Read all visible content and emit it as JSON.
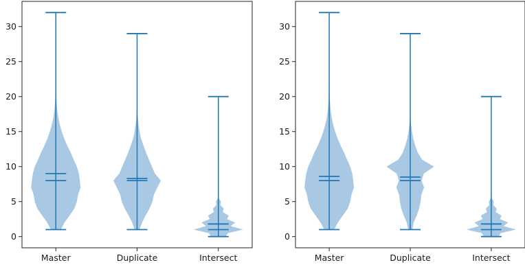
{
  "colors": {
    "violin_fill": "#a9c8e3",
    "line": "#1f77b4",
    "axis": "#222222",
    "text": "#1a1a1a"
  },
  "chart_data": [
    {
      "type": "violin",
      "title": "",
      "xlabel": "",
      "ylabel": "",
      "categories": [
        "Master",
        "Duplicate",
        "Intersect"
      ],
      "ylim": [
        -1.6,
        33.6
      ],
      "yticks": [
        0,
        5,
        10,
        15,
        20,
        25,
        30
      ],
      "grid": false,
      "series": [
        {
          "category": "Master",
          "min": 1,
          "max": 32,
          "mean": 9.0,
          "median": 8.0,
          "density": [
            [
              1,
              0.2
            ],
            [
              2,
              0.35
            ],
            [
              3,
              0.55
            ],
            [
              4,
              0.75
            ],
            [
              5,
              0.85
            ],
            [
              6,
              0.9
            ],
            [
              7,
              1.0
            ],
            [
              8,
              0.97
            ],
            [
              9,
              0.93
            ],
            [
              10,
              0.85
            ],
            [
              11,
              0.72
            ],
            [
              12,
              0.6
            ],
            [
              13,
              0.46
            ],
            [
              14,
              0.34
            ],
            [
              15,
              0.24
            ],
            [
              16,
              0.16
            ],
            [
              17,
              0.1
            ],
            [
              18,
              0.06
            ],
            [
              19,
              0.035
            ],
            [
              20,
              0.02
            ],
            [
              22,
              0.01
            ],
            [
              26,
              0.005
            ],
            [
              32,
              0.0
            ]
          ]
        },
        {
          "category": "Duplicate",
          "min": 1,
          "max": 29,
          "mean": 8.3,
          "median": 8.0,
          "density": [
            [
              1,
              0.1
            ],
            [
              2,
              0.2
            ],
            [
              3,
              0.34
            ],
            [
              4,
              0.5
            ],
            [
              5,
              0.62
            ],
            [
              6,
              0.68
            ],
            [
              7,
              0.82
            ],
            [
              8,
              0.96
            ],
            [
              9,
              0.72
            ],
            [
              10,
              0.6
            ],
            [
              11,
              0.48
            ],
            [
              12,
              0.36
            ],
            [
              13,
              0.26
            ],
            [
              14,
              0.16
            ],
            [
              15,
              0.1
            ],
            [
              16,
              0.06
            ],
            [
              17,
              0.03
            ],
            [
              18,
              0.015
            ],
            [
              20,
              0.005
            ],
            [
              29,
              0.0
            ]
          ]
        },
        {
          "category": "Intersect",
          "min": 0,
          "max": 20,
          "mean": 1.8,
          "median": 1.0,
          "density": [
            [
              0,
              0.3
            ],
            [
              0.5,
              0.38
            ],
            [
              1,
              1.0
            ],
            [
              1.5,
              0.5
            ],
            [
              2,
              0.68
            ],
            [
              2.5,
              0.35
            ],
            [
              3,
              0.42
            ],
            [
              3.5,
              0.18
            ],
            [
              4,
              0.22
            ],
            [
              4.5,
              0.08
            ],
            [
              5,
              0.1
            ],
            [
              5.5,
              0.02
            ],
            [
              6,
              0.01
            ],
            [
              8,
              0.005
            ],
            [
              20,
              0.0
            ]
          ]
        }
      ]
    },
    {
      "type": "violin",
      "title": "",
      "xlabel": "",
      "ylabel": "",
      "categories": [
        "Master",
        "Duplicate",
        "Intersect"
      ],
      "ylim": [
        -1.6,
        33.6
      ],
      "yticks": [
        0,
        5,
        10,
        15,
        20,
        25,
        30
      ],
      "grid": false,
      "series": [
        {
          "category": "Master",
          "min": 1,
          "max": 32,
          "mean": 8.6,
          "median": 8.0,
          "density": [
            [
              1,
              0.2
            ],
            [
              2,
              0.35
            ],
            [
              3,
              0.55
            ],
            [
              4,
              0.75
            ],
            [
              5,
              0.85
            ],
            [
              6,
              0.9
            ],
            [
              7,
              1.0
            ],
            [
              8,
              0.97
            ],
            [
              9,
              0.93
            ],
            [
              10,
              0.85
            ],
            [
              11,
              0.72
            ],
            [
              12,
              0.6
            ],
            [
              13,
              0.46
            ],
            [
              14,
              0.34
            ],
            [
              15,
              0.24
            ],
            [
              16,
              0.16
            ],
            [
              17,
              0.1
            ],
            [
              18,
              0.06
            ],
            [
              19,
              0.035
            ],
            [
              20,
              0.02
            ],
            [
              22,
              0.01
            ],
            [
              26,
              0.005
            ],
            [
              32,
              0.0
            ]
          ]
        },
        {
          "category": "Duplicate",
          "min": 1,
          "max": 29,
          "mean": 8.5,
          "median": 8.0,
          "density": [
            [
              1,
              0.08
            ],
            [
              2,
              0.14
            ],
            [
              3,
              0.26
            ],
            [
              4,
              0.36
            ],
            [
              5,
              0.42
            ],
            [
              6,
              0.45
            ],
            [
              7,
              0.56
            ],
            [
              8,
              0.46
            ],
            [
              9,
              0.55
            ],
            [
              10,
              0.96
            ],
            [
              11,
              0.48
            ],
            [
              12,
              0.3
            ],
            [
              13,
              0.2
            ],
            [
              14,
              0.12
            ],
            [
              15,
              0.07
            ],
            [
              16,
              0.035
            ],
            [
              17,
              0.015
            ],
            [
              19,
              0.005
            ],
            [
              29,
              0.0
            ]
          ]
        },
        {
          "category": "Intersect",
          "min": 0,
          "max": 20,
          "mean": 1.8,
          "median": 1.0,
          "density": [
            [
              0,
              0.3
            ],
            [
              0.5,
              0.38
            ],
            [
              1,
              1.0
            ],
            [
              1.5,
              0.5
            ],
            [
              2,
              0.68
            ],
            [
              2.5,
              0.35
            ],
            [
              3,
              0.42
            ],
            [
              3.5,
              0.18
            ],
            [
              4,
              0.22
            ],
            [
              4.5,
              0.08
            ],
            [
              5,
              0.1
            ],
            [
              5.5,
              0.02
            ],
            [
              6,
              0.01
            ],
            [
              8,
              0.005
            ],
            [
              20,
              0.0
            ]
          ]
        }
      ]
    }
  ]
}
